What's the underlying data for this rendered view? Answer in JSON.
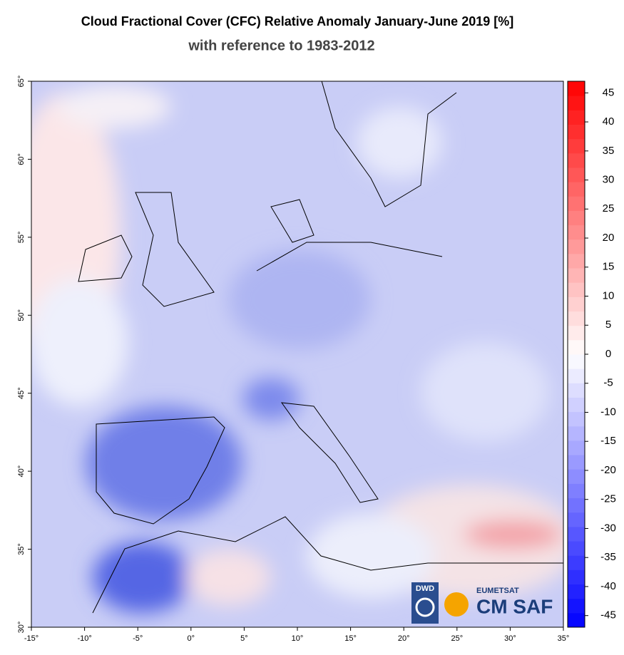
{
  "map": {
    "title": "Cloud Fractional Cover (CFC) Relative Anomaly January-June 2019 [%]",
    "subtitle": "with reference to 1983-2012",
    "xlim": [
      -15,
      35
    ],
    "ylim": [
      30,
      65
    ],
    "xticks": [
      {
        "value": -15,
        "label": "-15°"
      },
      {
        "value": -10,
        "label": "-10°"
      },
      {
        "value": -5,
        "label": "-5°"
      },
      {
        "value": 0,
        "label": "0°"
      },
      {
        "value": 5,
        "label": "5°"
      },
      {
        "value": 10,
        "label": "10°"
      },
      {
        "value": 15,
        "label": "15°"
      },
      {
        "value": 20,
        "label": "20°"
      },
      {
        "value": 25,
        "label": "25°"
      },
      {
        "value": 30,
        "label": "30°"
      },
      {
        "value": 35,
        "label": "35°"
      }
    ],
    "yticks": [
      {
        "value": 30,
        "label": "30°"
      },
      {
        "value": 35,
        "label": "35°"
      },
      {
        "value": 40,
        "label": "40°"
      },
      {
        "value": 45,
        "label": "45°"
      },
      {
        "value": 50,
        "label": "50°"
      },
      {
        "value": 55,
        "label": "55°"
      },
      {
        "value": 60,
        "label": "60°"
      },
      {
        "value": 65,
        "label": "65°"
      }
    ],
    "colorbar": {
      "lim": [
        -47,
        47
      ],
      "ticks": [
        45,
        40,
        35,
        30,
        25,
        20,
        15,
        10,
        5,
        0,
        -5,
        -10,
        -15,
        -20,
        -25,
        -30,
        -35,
        -40,
        -45
      ]
    },
    "logos": {
      "dwd": "DWD",
      "eumetsat": "EUMETSAT",
      "cmsaf": "CM SAF"
    }
  }
}
